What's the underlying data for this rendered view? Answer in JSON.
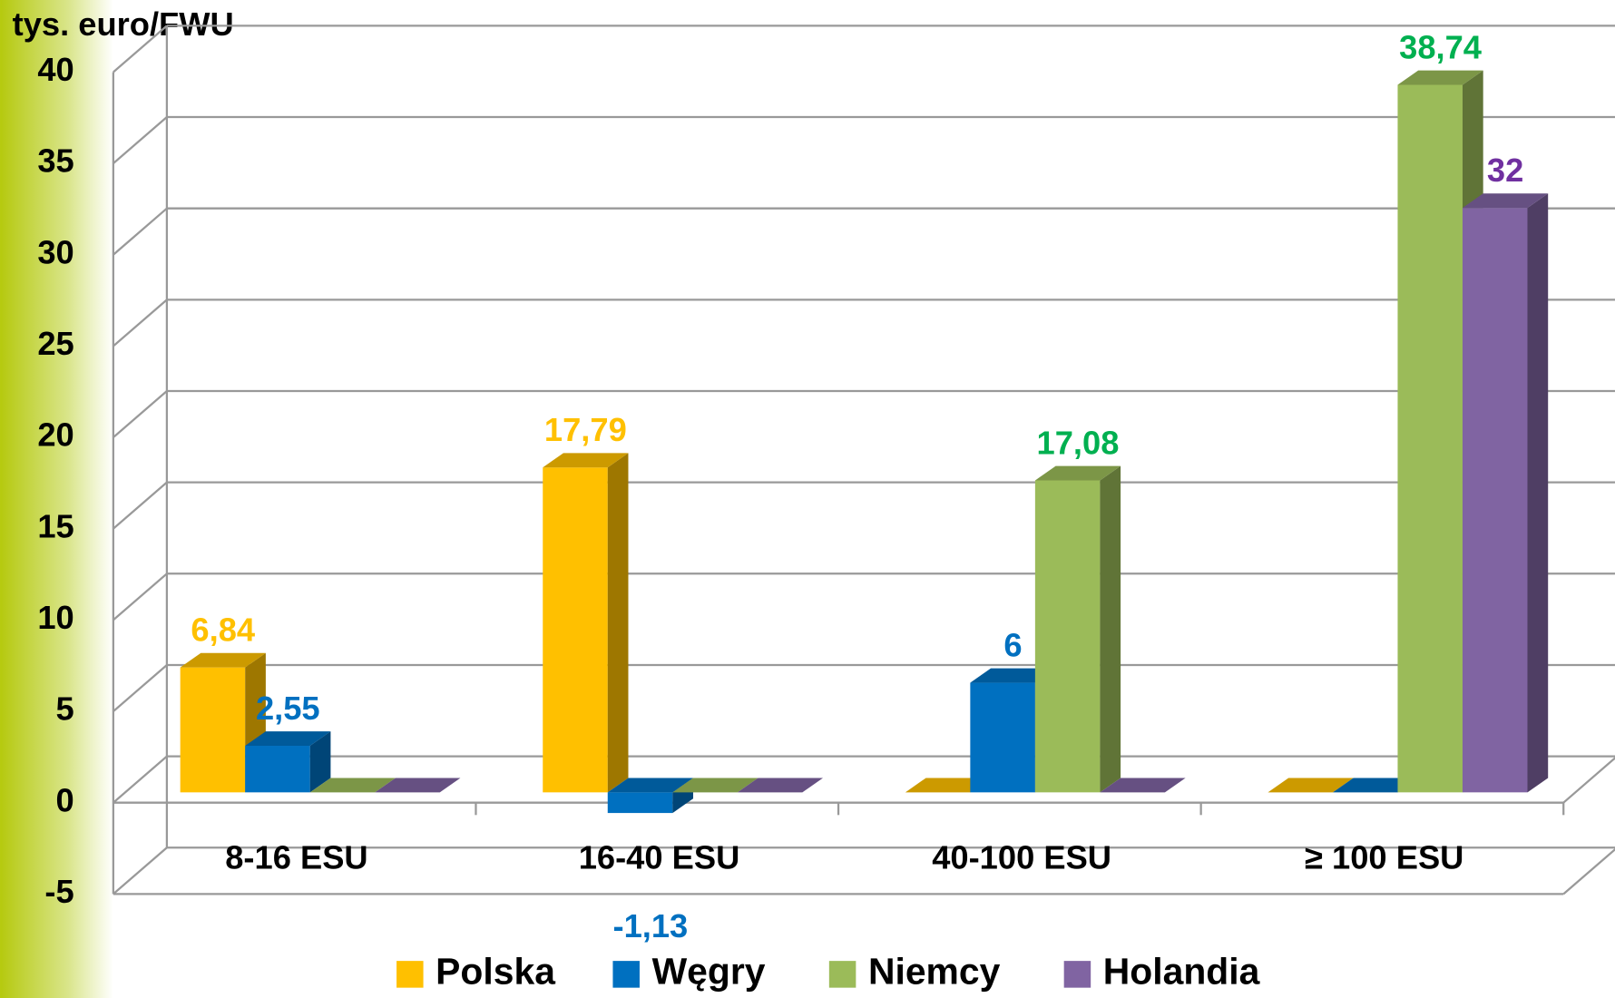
{
  "chart_data": {
    "type": "bar3d",
    "y_axis_label": "tys. euro/FWU",
    "categories": [
      "8-16 ESU",
      "16-40 ESU",
      "40-100 ESU",
      "≥ 100 ESU"
    ],
    "series": [
      {
        "name": "Polska",
        "color": "#ffc000",
        "label_color": "#ffc000",
        "values": [
          6.84,
          17.79,
          0,
          0
        ],
        "value_labels": [
          "6,84",
          "17,79",
          null,
          null
        ]
      },
      {
        "name": "Węgry",
        "color": "#0070c0",
        "label_color": "#0070c0",
        "values": [
          2.55,
          -1.13,
          6,
          0
        ],
        "value_labels": [
          "2,55",
          "-1,13",
          "6",
          null
        ]
      },
      {
        "name": "Niemcy",
        "color": "#9bbb59",
        "label_color": "#00b050",
        "values": [
          0,
          0,
          17.08,
          38.74
        ],
        "value_labels": [
          null,
          null,
          "17,08",
          "38,74"
        ]
      },
      {
        "name": "Holandia",
        "color": "#8064a2",
        "label_color": "#7030a0",
        "values": [
          0,
          0,
          0,
          32
        ],
        "value_labels": [
          null,
          null,
          null,
          "32"
        ]
      }
    ],
    "ylim": [
      -5,
      40
    ],
    "yticks": [
      -5,
      0,
      5,
      10,
      15,
      20,
      25,
      30,
      35,
      40
    ],
    "grid": true,
    "legend": "bottom"
  }
}
